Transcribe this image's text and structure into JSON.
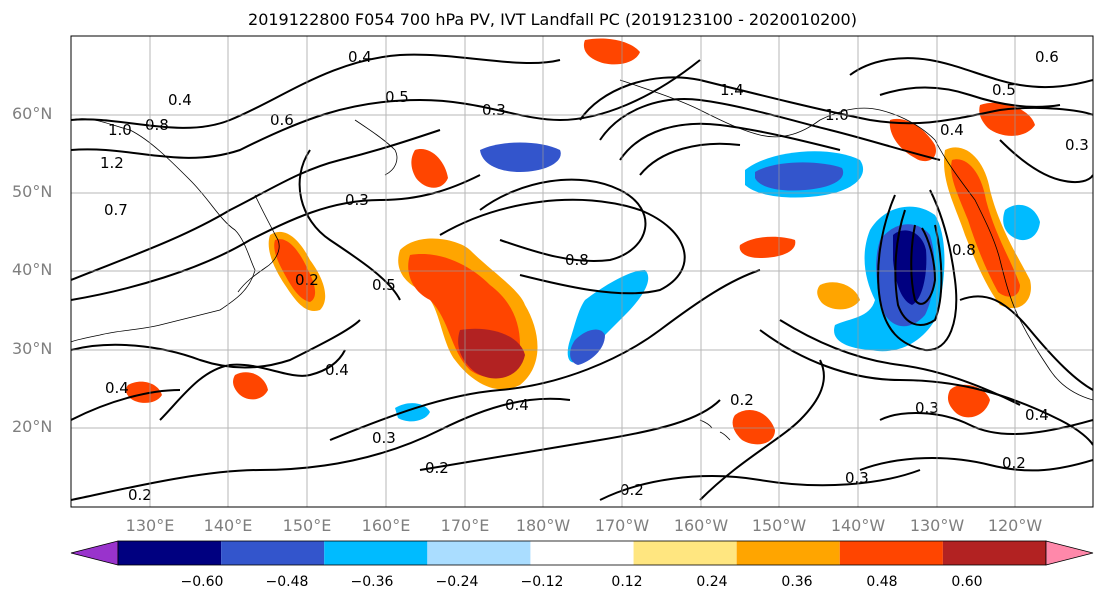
{
  "title": "2019122800 F054 700 hPa PV, IVT Landfall PC (2019123100 - 2020010200)",
  "lat_labels": [
    "60°N",
    "50°N",
    "40°N",
    "30°N",
    "20°N"
  ],
  "lon_labels": [
    "130°E",
    "140°E",
    "150°E",
    "160°E",
    "170°E",
    "180°W",
    "170°W",
    "160°W",
    "150°W",
    "140°W",
    "130°W",
    "120°W"
  ],
  "colorbar": {
    "ticks": [
      "−0.60",
      "−0.48",
      "−0.36",
      "−0.24",
      "−0.12",
      "0.12",
      "0.24",
      "0.36",
      "0.48",
      "0.60"
    ],
    "colors": [
      "#9933cc",
      "#000080",
      "#3355cc",
      "#00bbff",
      "#aaddff",
      "#ffffff",
      "#ffe680",
      "#ffa500",
      "#ff4500",
      "#b22222",
      "#ff88aa"
    ]
  },
  "contour_labels": [
    "0.4",
    "0.6",
    "0.5",
    "0.3",
    "1.0",
    "1.2",
    "0.8",
    "0.7",
    "0.2",
    "0.4",
    "0.5",
    "0.3",
    "0.8",
    "1.4",
    "1.0",
    "0.6",
    "0.5",
    "0.4",
    "0.3",
    "0.8",
    "0.2",
    "0.4",
    "0.3",
    "0.2",
    "0.4",
    "0.2",
    "0.4",
    "0.3",
    "0.2",
    "0.3",
    "0.2",
    "0.4"
  ]
}
